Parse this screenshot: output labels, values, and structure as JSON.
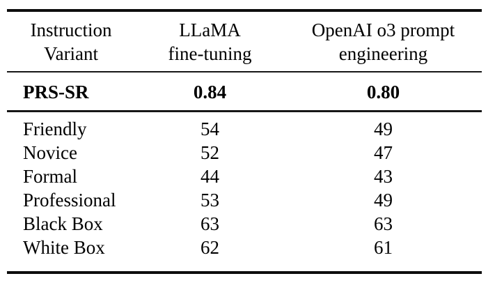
{
  "table": {
    "title_semantic": "Attack success by instruction variant",
    "header": [
      {
        "line1": "Instruction",
        "line2": "Variant"
      },
      {
        "line1": "LLaMA",
        "line2": "fine-tuning"
      },
      {
        "line1": "OpenAI o3 prompt",
        "line2": "engineering"
      }
    ],
    "highlight_row": {
      "cells": [
        "PRS-SR",
        "0.84",
        "0.80"
      ],
      "bold": true
    },
    "rows": [
      {
        "cells": [
          "Friendly",
          "54",
          "49"
        ]
      },
      {
        "cells": [
          "Novice",
          "52",
          "47"
        ]
      },
      {
        "cells": [
          "Formal",
          "44",
          "43"
        ]
      },
      {
        "cells": [
          "Professional",
          "53",
          "49"
        ]
      },
      {
        "cells": [
          "Black Box",
          "63",
          "63"
        ]
      },
      {
        "cells": [
          "White Box",
          "62",
          "61"
        ]
      }
    ],
    "colors": {
      "background": "#ffffff",
      "text": "#000000",
      "rule": "#0d0d0d"
    }
  },
  "chart_data": {
    "type": "table",
    "columns": [
      "Instruction Variant",
      "LLaMA fine-tuning",
      "OpenAI o3 prompt engineering"
    ],
    "rows": [
      [
        "PRS-SR",
        "0.84",
        "0.80"
      ],
      [
        "Friendly",
        "54",
        "49"
      ],
      [
        "Novice",
        "52",
        "47"
      ],
      [
        "Formal",
        "44",
        "43"
      ],
      [
        "Professional",
        "53",
        "49"
      ],
      [
        "Black Box",
        "63",
        "63"
      ],
      [
        "White Box",
        "62",
        "61"
      ]
    ],
    "notes": "PRS-SR row and its values rendered in bold; outer horizontal rules thick, inner rules thin; no vertical rules"
  }
}
